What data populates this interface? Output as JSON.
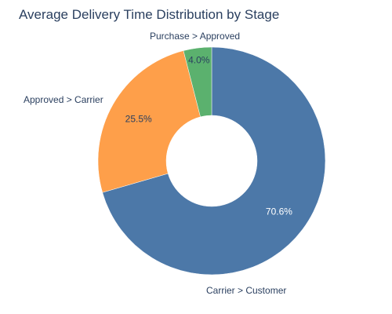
{
  "chart_data": {
    "type": "pie",
    "donut": true,
    "title": "Average Delivery Time Distribution by Stage",
    "series": [
      {
        "label": "Carrier > Customer",
        "value": 70.6,
        "percent_label": "70.6%",
        "color": "#4c78a8",
        "text_color": "#ffffff"
      },
      {
        "label": "Approved > Carrier",
        "value": 25.5,
        "percent_label": "25.5%",
        "color": "#fe9f4a",
        "text_color": "#2a3f5f"
      },
      {
        "label": "Purchase > Approved",
        "value": 4.0,
        "percent_label": "4.0%",
        "color": "#5bb16e",
        "text_color": "#2a3f5f"
      }
    ],
    "legend": "none",
    "colors": {
      "title": "#2a3f5f",
      "background": "#ffffff"
    }
  }
}
